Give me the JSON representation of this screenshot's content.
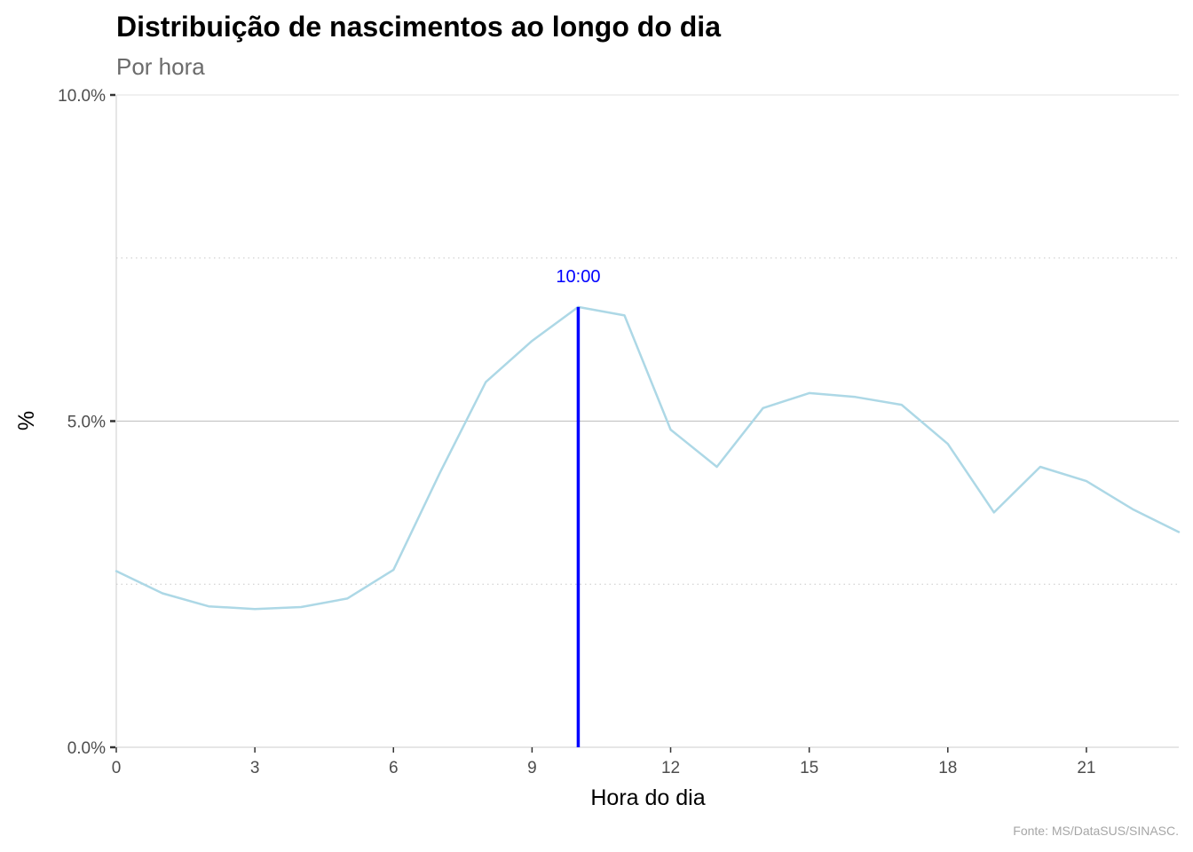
{
  "chart_data": {
    "type": "line",
    "title": "Distribuição de nascimentos ao longo do dia",
    "subtitle": "Por hora",
    "xlabel": "Hora do dia",
    "ylabel": "%",
    "caption": "Fonte: MS/DataSUS/SINASC.",
    "xlim": [
      0,
      23
    ],
    "ylim": [
      0,
      10
    ],
    "x_ticks": [
      0,
      3,
      6,
      9,
      12,
      15,
      18,
      21
    ],
    "x_tick_labels": [
      "0",
      "3",
      "6",
      "9",
      "12",
      "15",
      "18",
      "21"
    ],
    "y_ticks": [
      0,
      5,
      10
    ],
    "y_tick_labels": [
      "0.0%",
      "5.0%",
      "10.0%"
    ],
    "y_minor_grid": [
      2.5,
      7.5
    ],
    "grid": true,
    "legend": "none",
    "series": [
      {
        "color": "#add8e6",
        "x": [
          0,
          1,
          2,
          3,
          4,
          5,
          6,
          7,
          8,
          9,
          10,
          11,
          12,
          13,
          14,
          15,
          16,
          17,
          18,
          19,
          20,
          21,
          22,
          23
        ],
        "values": [
          2.7,
          2.36,
          2.16,
          2.12,
          2.15,
          2.28,
          2.72,
          4.2,
          5.6,
          6.23,
          6.75,
          6.62,
          4.87,
          4.3,
          5.2,
          5.43,
          5.37,
          5.25,
          4.65,
          3.6,
          4.3,
          4.08,
          3.65,
          3.3
        ]
      }
    ],
    "annotations": [
      {
        "type": "vline",
        "x": 10,
        "y_from": 0,
        "y_to": 6.75,
        "label": "10:00",
        "color": "#0000ff"
      }
    ]
  }
}
